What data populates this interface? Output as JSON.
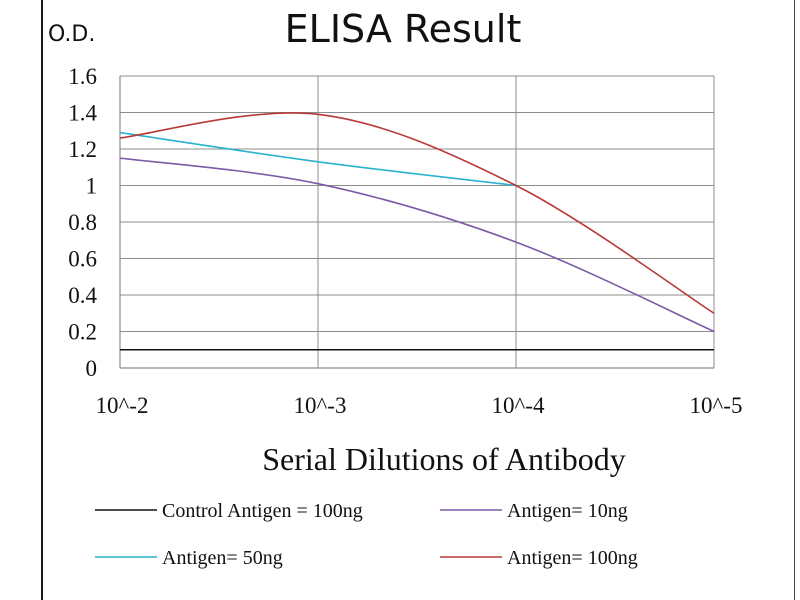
{
  "chart_data": {
    "type": "line",
    "title": "ELISA Result",
    "ylabel": "O.D.",
    "xlabel": "Serial Dilutions  of Antibody",
    "categories": [
      "10^-2",
      "10^-3",
      "10^-4",
      "10^-5"
    ],
    "ylim": [
      0,
      1.6
    ],
    "yticks": [
      0,
      0.2,
      0.4,
      0.6,
      0.8,
      1,
      1.2,
      1.4,
      1.6
    ],
    "ytick_labels": [
      "0",
      "0.2",
      "0.4",
      "0.6",
      "0.8",
      "1",
      "1.2",
      "1.4",
      "1.6"
    ],
    "grid": true,
    "legend_position": "bottom",
    "series": [
      {
        "name": "Control Antigen = 100ng",
        "color": "#111111",
        "values": [
          0.1,
          0.1,
          0.1,
          0.1
        ]
      },
      {
        "name": "Antigen= 10ng",
        "color": "#7b5aa6",
        "values": [
          1.15,
          1.01,
          0.69,
          0.2
        ]
      },
      {
        "name": "Antigen= 50ng",
        "color": "#27b4cc",
        "values": [
          1.29,
          1.13,
          1.0,
          null
        ]
      },
      {
        "name": "Antigen= 100ng",
        "color": "#b83a36",
        "values": [
          1.26,
          1.39,
          1.0,
          0.3
        ]
      }
    ]
  }
}
